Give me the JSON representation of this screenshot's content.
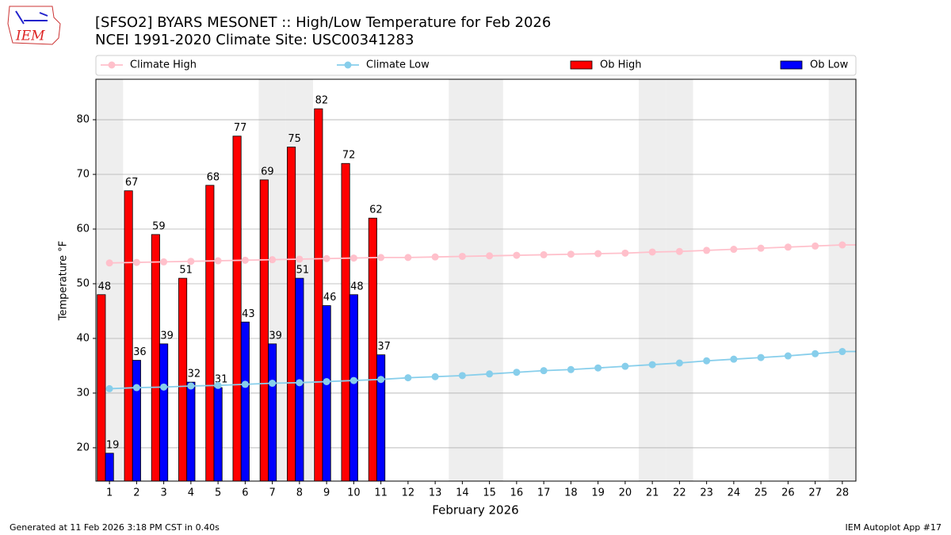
{
  "logo_text": "IEM",
  "footer": {
    "left": "Generated at 11 Feb 2026 3:18 PM CST in 0.40s",
    "right": "IEM Autoplot App #17"
  },
  "chart_data": {
    "type": "bar",
    "title": "[SFSO2] BYARS MESONET :: High/Low Temperature for Feb 2026",
    "subtitle": "NCEI 1991-2020 Climate Site: USC00341283",
    "xlabel": "February 2026",
    "ylabel": "Temperature °F",
    "x": [
      1,
      2,
      3,
      4,
      5,
      6,
      7,
      8,
      9,
      10,
      11,
      12,
      13,
      14,
      15,
      16,
      17,
      18,
      19,
      20,
      21,
      22,
      23,
      24,
      25,
      26,
      27,
      28
    ],
    "xlim": [
      0.5,
      28.5
    ],
    "xticks": [
      1,
      2,
      3,
      4,
      5,
      6,
      7,
      8,
      9,
      10,
      11,
      12,
      13,
      14,
      15,
      16,
      17,
      18,
      19,
      20,
      21,
      22,
      23,
      24,
      25,
      26,
      27,
      28
    ],
    "ylim": [
      13.9,
      87.4
    ],
    "yticks": [
      20,
      30,
      40,
      50,
      60,
      70,
      80
    ],
    "grid": true,
    "legend": "top",
    "shaded_days": [
      1,
      7,
      8,
      14,
      15,
      21,
      22,
      28
    ],
    "shade_color": "#eeeeee",
    "series": [
      {
        "name": "Climate High",
        "type": "line",
        "color": "#ffc0cb",
        "values": [
          53.8,
          53.9,
          54.0,
          54.1,
          54.2,
          54.3,
          54.4,
          54.5,
          54.6,
          54.7,
          54.8,
          54.8,
          54.9,
          55.0,
          55.1,
          55.2,
          55.3,
          55.4,
          55.5,
          55.6,
          55.8,
          55.9,
          56.1,
          56.3,
          56.5,
          56.7,
          56.9,
          57.1
        ]
      },
      {
        "name": "Climate Low",
        "type": "line",
        "color": "#87ceeb",
        "values": [
          30.8,
          31.0,
          31.1,
          31.3,
          31.4,
          31.6,
          31.8,
          31.9,
          32.1,
          32.3,
          32.5,
          32.8,
          33.0,
          33.2,
          33.5,
          33.8,
          34.1,
          34.3,
          34.6,
          34.9,
          35.2,
          35.5,
          35.9,
          36.2,
          36.5,
          36.8,
          37.2,
          37.6
        ]
      },
      {
        "name": "Ob High",
        "type": "bar",
        "color": "#ff0000",
        "values": [
          48,
          67,
          59,
          51,
          68,
          77,
          69,
          75,
          82,
          72,
          62,
          null,
          null,
          null,
          null,
          null,
          null,
          null,
          null,
          null,
          null,
          null,
          null,
          null,
          null,
          null,
          null,
          null
        ]
      },
      {
        "name": "Ob Low",
        "type": "bar",
        "color": "#0000ff",
        "values": [
          19,
          36,
          39,
          32,
          31,
          43,
          39,
          51,
          46,
          48,
          37,
          null,
          null,
          null,
          null,
          null,
          null,
          null,
          null,
          null,
          null,
          null,
          null,
          null,
          null,
          null,
          null,
          null
        ]
      }
    ]
  }
}
